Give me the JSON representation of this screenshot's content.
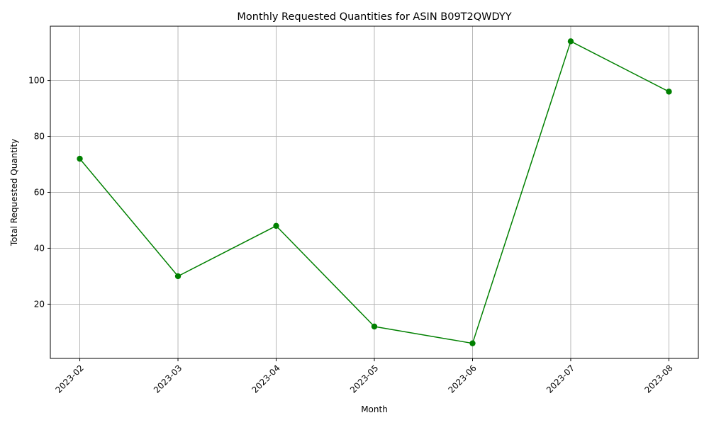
{
  "chart_data": {
    "type": "line",
    "title": "Monthly Requested Quantities for ASIN B09T2QWDYY",
    "xlabel": "Month",
    "ylabel": "Total Requested Quantity",
    "categories": [
      "2023-02",
      "2023-03",
      "2023-04",
      "2023-05",
      "2023-06",
      "2023-07",
      "2023-08"
    ],
    "series": [
      {
        "values": [
          72,
          30,
          48,
          12,
          6,
          114,
          96
        ]
      }
    ],
    "yticks": [
      20,
      40,
      60,
      80,
      100
    ],
    "ylim": [
      0.6,
      119.4
    ],
    "grid": true,
    "marker": "circle",
    "colors": {
      "line": "#008000",
      "grid": "#b0b0b0",
      "axis": "#000000"
    }
  }
}
